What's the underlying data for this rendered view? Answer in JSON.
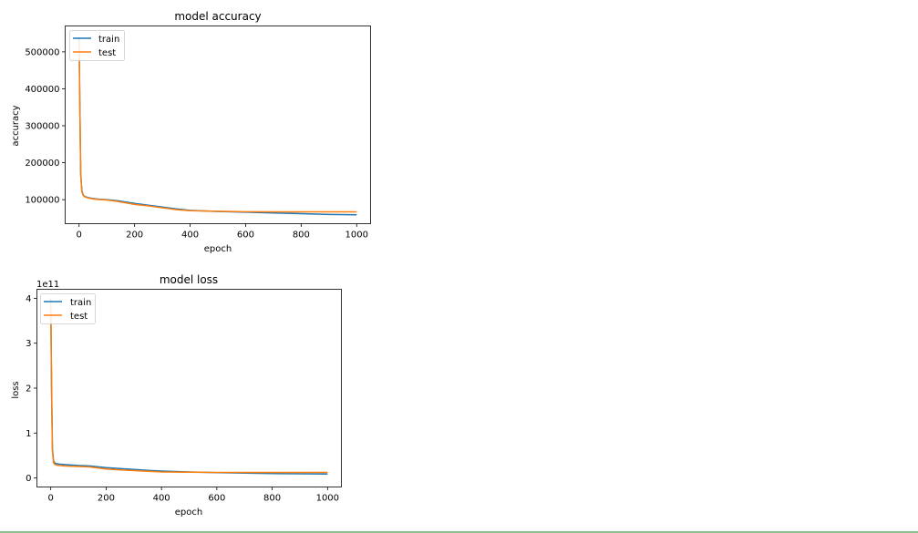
{
  "chart_data": [
    {
      "type": "line",
      "title": "model accuracy",
      "xlabel": "epoch",
      "ylabel": "accuracy",
      "xlim": [
        -50,
        1050
      ],
      "ylim": [
        35000,
        570000
      ],
      "xticks": [
        0,
        200,
        400,
        600,
        800,
        1000
      ],
      "yticks": [
        100000,
        200000,
        300000,
        400000,
        500000
      ],
      "ytick_labels": [
        "100000",
        "200000",
        "300000",
        "400000",
        "500000"
      ],
      "multiplier": "",
      "legend_position": "upper left",
      "grid": false,
      "series": [
        {
          "name": "train",
          "color": "#1f77b4",
          "x": [
            0,
            3,
            6,
            10,
            15,
            20,
            30,
            50,
            75,
            100,
            140,
            200,
            250,
            300,
            350,
            400,
            500,
            600,
            700,
            800,
            900,
            1000
          ],
          "y": [
            540000,
            350000,
            170000,
            125000,
            112000,
            109000,
            106000,
            103000,
            101000,
            100000,
            97000,
            90000,
            85000,
            80000,
            75000,
            71000,
            68000,
            66000,
            64000,
            62000,
            60000,
            59000
          ]
        },
        {
          "name": "test",
          "color": "#ff7f0e",
          "x": [
            0,
            3,
            6,
            10,
            15,
            20,
            30,
            50,
            75,
            100,
            140,
            200,
            250,
            300,
            350,
            400,
            500,
            600,
            700,
            800,
            900,
            1000
          ],
          "y": [
            530000,
            340000,
            165000,
            122000,
            111000,
            108000,
            105000,
            102000,
            100000,
            99000,
            95000,
            87000,
            83000,
            78000,
            73000,
            70000,
            68500,
            67500,
            67000,
            67000,
            67000,
            67000
          ]
        }
      ]
    },
    {
      "type": "line",
      "title": "model loss",
      "xlabel": "epoch",
      "ylabel": "loss",
      "xlim": [
        -50,
        1050
      ],
      "ylim": [
        -0.2,
        4.2
      ],
      "xticks": [
        0,
        200,
        400,
        600,
        800,
        1000
      ],
      "yticks": [
        0,
        1,
        2,
        3,
        4
      ],
      "ytick_labels": [
        "0",
        "1",
        "2",
        "3",
        "4"
      ],
      "multiplier": "1e11",
      "legend_position": "upper left",
      "grid": false,
      "series": [
        {
          "name": "train",
          "color": "#1f77b4",
          "x": [
            0,
            3,
            6,
            10,
            15,
            20,
            30,
            50,
            75,
            100,
            140,
            200,
            250,
            300,
            350,
            400,
            500,
            600,
            700,
            800,
            900,
            1000
          ],
          "y": [
            4.0,
            2.0,
            0.65,
            0.38,
            0.33,
            0.32,
            0.31,
            0.3,
            0.29,
            0.28,
            0.27,
            0.23,
            0.21,
            0.19,
            0.17,
            0.155,
            0.135,
            0.12,
            0.11,
            0.1,
            0.095,
            0.09
          ]
        },
        {
          "name": "test",
          "color": "#ff7f0e",
          "x": [
            0,
            3,
            6,
            10,
            15,
            20,
            30,
            50,
            75,
            100,
            140,
            200,
            250,
            300,
            350,
            400,
            500,
            600,
            700,
            800,
            900,
            1000
          ],
          "y": [
            3.9,
            1.9,
            0.6,
            0.34,
            0.3,
            0.29,
            0.28,
            0.27,
            0.26,
            0.255,
            0.245,
            0.2,
            0.18,
            0.165,
            0.15,
            0.135,
            0.13,
            0.125,
            0.125,
            0.125,
            0.125,
            0.125
          ]
        }
      ]
    }
  ]
}
